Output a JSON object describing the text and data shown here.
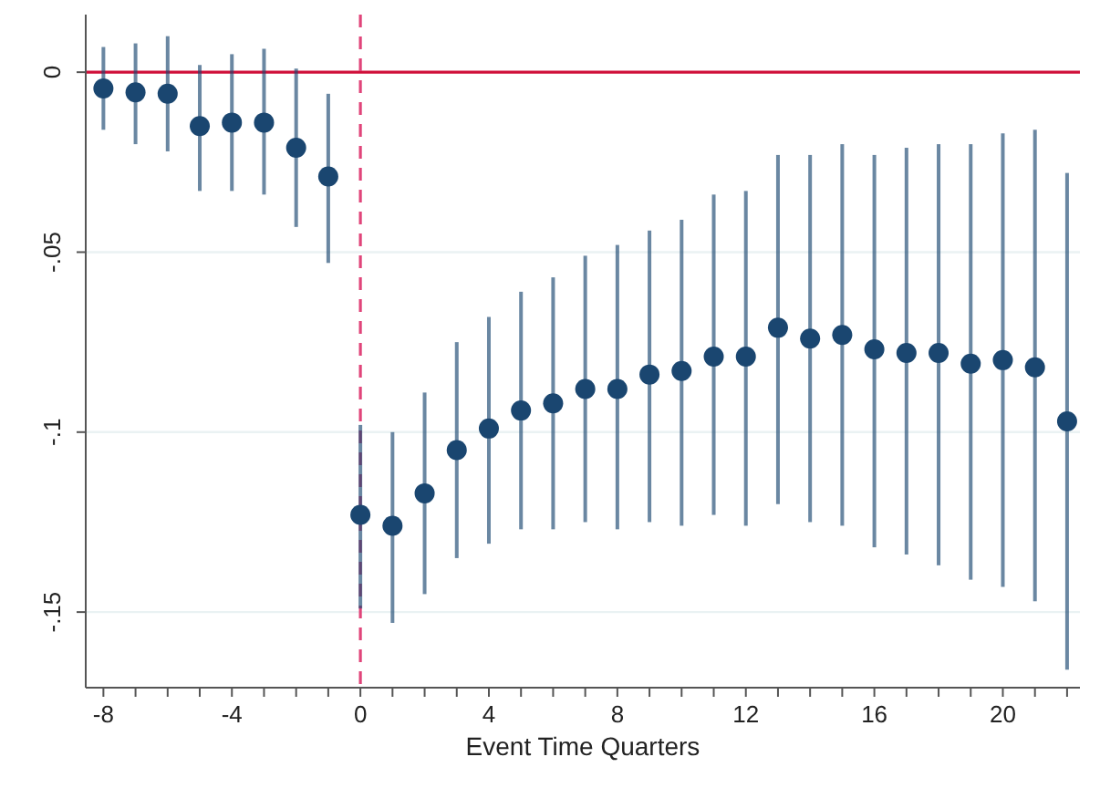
{
  "chart_data": {
    "type": "scatter",
    "xlabel": "Event Time Quarters",
    "x": [
      -8,
      -7,
      -6,
      -5,
      -4,
      -3,
      -2,
      -1,
      0,
      1,
      2,
      3,
      4,
      5,
      6,
      7,
      8,
      9,
      10,
      11,
      12,
      13,
      14,
      15,
      16,
      17,
      18,
      19,
      20,
      21,
      22
    ],
    "series": [
      {
        "color": "#1a4670",
        "values": [
          -0.0045,
          -0.0056,
          -0.006,
          -0.015,
          -0.014,
          -0.014,
          -0.021,
          -0.029,
          -0.123,
          -0.126,
          -0.117,
          -0.105,
          -0.099,
          -0.094,
          -0.092,
          -0.088,
          -0.088,
          -0.084,
          -0.083,
          -0.079,
          -0.079,
          -0.071,
          -0.074,
          -0.073,
          -0.077,
          -0.078,
          -0.078,
          -0.081,
          -0.08,
          -0.082,
          -0.097
        ],
        "errors": [
          [
            -0.016,
            0.007
          ],
          [
            -0.02,
            0.008
          ],
          [
            -0.022,
            0.01
          ],
          [
            -0.033,
            0.002
          ],
          [
            -0.033,
            0.005
          ],
          [
            -0.034,
            0.0065
          ],
          [
            -0.043,
            0.001
          ],
          [
            -0.053,
            -0.006
          ],
          [
            -0.149,
            -0.098
          ],
          [
            -0.153,
            -0.1
          ],
          [
            -0.145,
            -0.089
          ],
          [
            -0.135,
            -0.075
          ],
          [
            -0.131,
            -0.068
          ],
          [
            -0.127,
            -0.061
          ],
          [
            -0.127,
            -0.057
          ],
          [
            -0.125,
            -0.051
          ],
          [
            -0.127,
            -0.048
          ],
          [
            -0.125,
            -0.044
          ],
          [
            -0.126,
            -0.041
          ],
          [
            -0.123,
            -0.034
          ],
          [
            -0.126,
            -0.033
          ],
          [
            -0.12,
            -0.023
          ],
          [
            -0.125,
            -0.023
          ],
          [
            -0.126,
            -0.02
          ],
          [
            -0.132,
            -0.023
          ],
          [
            -0.134,
            -0.021
          ],
          [
            -0.137,
            -0.02
          ],
          [
            -0.141,
            -0.02
          ],
          [
            -0.143,
            -0.017
          ],
          [
            -0.147,
            -0.016
          ],
          [
            -0.166,
            -0.028
          ]
        ]
      }
    ],
    "xlim": [
      -8.55,
      22.4
    ],
    "ylim": [
      -0.171,
      0.016
    ],
    "xticks": [
      -8,
      {
        "value": -7,
        "label": null
      },
      {
        "value": -6,
        "label": null
      },
      {
        "value": -5,
        "label": null
      },
      -4,
      {
        "value": -3,
        "label": null
      },
      {
        "value": -2,
        "label": null
      },
      {
        "value": -1,
        "label": null
      },
      0,
      {
        "value": 1,
        "label": null
      },
      {
        "value": 2,
        "label": null
      },
      {
        "value": 3,
        "label": null
      },
      4,
      {
        "value": 5,
        "label": null
      },
      {
        "value": 6,
        "label": null
      },
      {
        "value": 7,
        "label": null
      },
      8,
      {
        "value": 9,
        "label": null
      },
      {
        "value": 10,
        "label": null
      },
      {
        "value": 11,
        "label": null
      },
      12,
      {
        "value": 13,
        "label": null
      },
      {
        "value": 14,
        "label": null
      },
      {
        "value": 15,
        "label": null
      },
      16,
      {
        "value": 17,
        "label": null
      },
      {
        "value": 18,
        "label": null
      },
      {
        "value": 19,
        "label": null
      },
      20,
      {
        "value": 21,
        "label": null
      },
      {
        "value": 22,
        "label": null
      }
    ],
    "yticks": [
      {
        "value": -0.15,
        "label": "-.15"
      },
      {
        "value": -0.1,
        "label": "-.1"
      },
      {
        "value": -0.05,
        "label": "-.05"
      },
      0
    ],
    "grid": "y",
    "marker": "circle",
    "ref_lines": [
      {
        "axis": "y",
        "value": 0,
        "color": "#d0103a",
        "line_style": "solid"
      },
      {
        "axis": "x",
        "value": 0,
        "color": "#e0457a",
        "line_style": "dashed"
      }
    ]
  }
}
